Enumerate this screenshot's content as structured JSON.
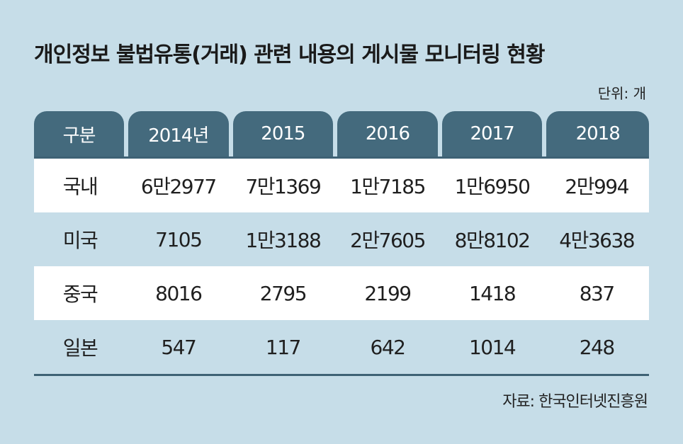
{
  "title": "개인정보 불법유통(거래) 관련 내용의 게시물 모니터링 현황",
  "unit": "단위: 개",
  "source": "자료: 한국인터넷진흥원",
  "colors": {
    "background": "#c6dde8",
    "header": "#446a7d",
    "row_alt": "#ffffff"
  },
  "chart_data": {
    "type": "table",
    "title": "개인정보 불법유통(거래) 관련 내용의 게시물 모니터링 현황",
    "unit": "단위: 개",
    "header": [
      "구분",
      "2014년",
      "2015",
      "2016",
      "2017",
      "2018"
    ],
    "rows": [
      {
        "label": "국내",
        "values": [
          "6만2977",
          "7만1369",
          "1만7185",
          "1만6950",
          "2만994"
        ]
      },
      {
        "label": "미국",
        "values": [
          "7105",
          "1만3188",
          "2만7605",
          "8만8102",
          "4만3638"
        ]
      },
      {
        "label": "중국",
        "values": [
          "8016",
          "2795",
          "2199",
          "1418",
          "837"
        ]
      },
      {
        "label": "일본",
        "values": [
          "547",
          "117",
          "642",
          "1014",
          "248"
        ]
      }
    ],
    "source": "자료: 한국인터넷진흥원"
  }
}
